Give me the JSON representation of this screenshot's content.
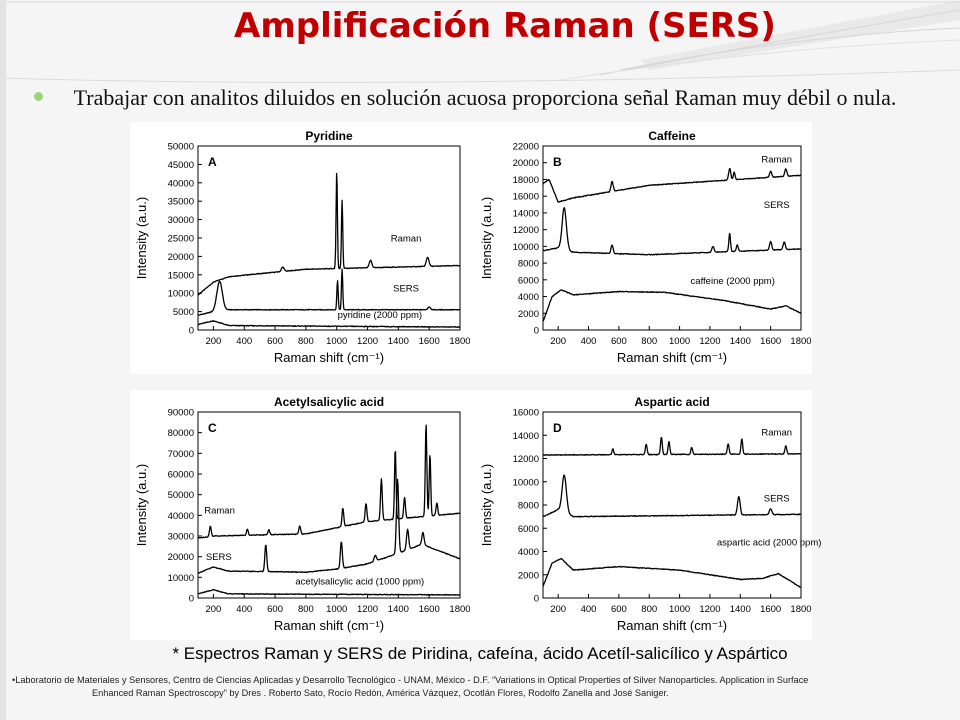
{
  "slide": {
    "title": "Amplificación Raman (SERS)",
    "bullet": "Trabajar con analitos diluidos en solución acuosa proporciona señal Raman muy débil o nula.",
    "caption": "* Espectros Raman y SERS de Piridina, cafeína, ácido Acetíl-salicílico y Aspártico",
    "footnote_line1": "•Laboratorio de Materiales y Sensores, Centro de Ciencias Aplicadas y Desarrollo Tecnológico - UNAM, México - D.F.  “Variations in Optical Properties of Silver Nanoparticles. Application in Surface",
    "footnote_line2": "Enhanced Raman Spectroscopy” by Dres . Roberto Sato, Rocío Redón, América Vázquez, Ocotlán Flores, Rodolfo Zanella and José Saniger.",
    "colors": {
      "title": "#c00000",
      "bullet_dot": "#9bd47c",
      "line": "#000000"
    }
  },
  "chart_data": [
    {
      "type": "line",
      "panel_letter": "A",
      "title": "Pyridine",
      "xlabel": "Raman shift (cm⁻¹)",
      "ylabel": "Intensity (a.u.)",
      "xlim": [
        100,
        1800
      ],
      "ylim": [
        0,
        50000
      ],
      "xticks": [
        200,
        400,
        600,
        800,
        1000,
        1200,
        1400,
        1600,
        1800
      ],
      "yticks": [
        0,
        5000,
        10000,
        15000,
        20000,
        25000,
        30000,
        35000,
        40000,
        45000,
        50000
      ],
      "series": [
        {
          "name": "Raman",
          "baseline": [
            [
              100,
              9500
            ],
            [
              200,
              13000
            ],
            [
              300,
              14500
            ],
            [
              800,
              16500
            ],
            [
              1800,
              17500
            ]
          ],
          "peaks": [
            [
              650,
              1200,
              12
            ],
            [
              1000,
              26500,
              6
            ],
            [
              1035,
              18500,
              6
            ],
            [
              1220,
              2000,
              12
            ],
            [
              1590,
              2500,
              12
            ]
          ],
          "label_at": [
            1450,
            24000
          ]
        },
        {
          "name": "SERS",
          "baseline": [
            [
              100,
              4000
            ],
            [
              200,
              5000
            ],
            [
              300,
              5500
            ],
            [
              1800,
              5500
            ]
          ],
          "peaks": [
            [
              240,
              8000,
              25
            ],
            [
              1005,
              8000,
              6
            ],
            [
              1035,
              11000,
              6
            ],
            [
              1600,
              800,
              12
            ]
          ],
          "label_at": [
            1450,
            10500
          ]
        },
        {
          "name": "pyridine (2000 ppm)",
          "baseline": [
            [
              100,
              1500
            ],
            [
              200,
              2500
            ],
            [
              300,
              1200
            ],
            [
              1800,
              800
            ]
          ],
          "peaks": [],
          "label_at": [
            1280,
            3200
          ]
        }
      ]
    },
    {
      "type": "line",
      "panel_letter": "B",
      "title": "Caffeine",
      "xlabel": "Raman shift (cm⁻¹)",
      "ylabel": "Intensity (a.u.)",
      "xlim": [
        100,
        1800
      ],
      "ylim": [
        0,
        22000
      ],
      "xticks": [
        200,
        400,
        600,
        800,
        1000,
        1200,
        1400,
        1600,
        1800
      ],
      "yticks": [
        0,
        2000,
        4000,
        6000,
        8000,
        10000,
        12000,
        14000,
        16000,
        18000,
        20000,
        22000
      ],
      "series": [
        {
          "name": "Raman",
          "baseline": [
            [
              100,
              17500
            ],
            [
              140,
              18000
            ],
            [
              200,
              15300
            ],
            [
              300,
              15800
            ],
            [
              800,
              17300
            ],
            [
              1800,
              18500
            ]
          ],
          "peaks": [
            [
              555,
              1200,
              10
            ],
            [
              1330,
              1400,
              10
            ],
            [
              1360,
              900,
              8
            ],
            [
              1600,
              700,
              10
            ],
            [
              1700,
              900,
              10
            ]
          ],
          "label_at": [
            1640,
            20000
          ]
        },
        {
          "name": "SERS",
          "baseline": [
            [
              100,
              9500
            ],
            [
              200,
              9800
            ],
            [
              300,
              9300
            ],
            [
              800,
              9000
            ],
            [
              1800,
              9700
            ]
          ],
          "peaks": [
            [
              240,
              5000,
              20
            ],
            [
              555,
              1000,
              10
            ],
            [
              1220,
              700,
              10
            ],
            [
              1330,
              2200,
              8
            ],
            [
              1380,
              800,
              8
            ],
            [
              1600,
              1000,
              10
            ],
            [
              1690,
              900,
              10
            ]
          ],
          "label_at": [
            1640,
            14600
          ]
        },
        {
          "name": "caffeine (2000 ppm)",
          "baseline": [
            [
              100,
              1000
            ],
            [
              160,
              4000
            ],
            [
              220,
              4800
            ],
            [
              300,
              4200
            ],
            [
              600,
              4600
            ],
            [
              900,
              4500
            ],
            [
              1300,
              3500
            ],
            [
              1600,
              2500
            ],
            [
              1700,
              2900
            ],
            [
              1800,
              2000
            ]
          ],
          "peaks": [],
          "label_at": [
            1350,
            5500
          ]
        }
      ]
    },
    {
      "type": "line",
      "panel_letter": "C",
      "title": "Acetylsalicylic acid",
      "xlabel": "Raman shift (cm⁻¹)",
      "ylabel": "Intensity (a.u.)",
      "xlim": [
        100,
        1800
      ],
      "ylim": [
        0,
        90000
      ],
      "xticks": [
        200,
        400,
        600,
        800,
        1000,
        1200,
        1400,
        1600,
        1800
      ],
      "yticks": [
        0,
        10000,
        20000,
        30000,
        40000,
        50000,
        60000,
        70000,
        80000,
        90000
      ],
      "series": [
        {
          "name": "Raman",
          "baseline": [
            [
              100,
              29000
            ],
            [
              200,
              30000
            ],
            [
              800,
              31000
            ],
            [
              1000,
              34000
            ],
            [
              1200,
              37000
            ],
            [
              1500,
              39000
            ],
            [
              1800,
              41000
            ]
          ],
          "peaks": [
            [
              180,
              5000,
              8
            ],
            [
              420,
              3000,
              8
            ],
            [
              560,
              2500,
              8
            ],
            [
              760,
              4000,
              8
            ],
            [
              1040,
              9000,
              8
            ],
            [
              1190,
              9000,
              8
            ],
            [
              1290,
              20000,
              8
            ],
            [
              1380,
              34000,
              7
            ],
            [
              1440,
              10000,
              8
            ],
            [
              1580,
              45000,
              7
            ],
            [
              1605,
              30000,
              7
            ],
            [
              1650,
              6000,
              8
            ]
          ],
          "label_at": [
            240,
            41000
          ]
        },
        {
          "name": "SERS",
          "baseline": [
            [
              100,
              12000
            ],
            [
              200,
              15000
            ],
            [
              300,
              13000
            ],
            [
              800,
              12500
            ],
            [
              1000,
              14000
            ],
            [
              1200,
              16500
            ],
            [
              1450,
              23000
            ],
            [
              1550,
              26000
            ],
            [
              1800,
              19000
            ]
          ],
          "peaks": [
            [
              540,
              13000,
              9
            ],
            [
              1030,
              13000,
              9
            ],
            [
              1250,
              3000,
              10
            ],
            [
              1395,
              36000,
              10
            ],
            [
              1460,
              10000,
              10
            ],
            [
              1560,
              6000,
              10
            ]
          ],
          "label_at": [
            235,
            18500
          ]
        },
        {
          "name": "acetylsalicylic acid (1000 ppm)",
          "baseline": [
            [
              100,
              2000
            ],
            [
              200,
              4000
            ],
            [
              300,
              2000
            ],
            [
              1800,
              1500
            ]
          ],
          "peaks": [],
          "label_at": [
            1150,
            6500
          ]
        }
      ]
    },
    {
      "type": "line",
      "panel_letter": "D",
      "title": "Aspartic acid",
      "xlabel": "Raman shift (cm⁻¹)",
      "ylabel": "Intensity (a.u.)",
      "xlim": [
        100,
        1800
      ],
      "ylim": [
        0,
        16000
      ],
      "xticks": [
        200,
        400,
        600,
        800,
        1000,
        1200,
        1400,
        1600,
        1800
      ],
      "yticks": [
        0,
        2000,
        4000,
        6000,
        8000,
        10000,
        12000,
        14000,
        16000
      ],
      "series": [
        {
          "name": "Raman",
          "baseline": [
            [
              100,
              12300
            ],
            [
              1800,
              12400
            ]
          ],
          "peaks": [
            [
              560,
              500,
              8
            ],
            [
              780,
              900,
              8
            ],
            [
              880,
              1500,
              8
            ],
            [
              930,
              1100,
              8
            ],
            [
              1080,
              600,
              8
            ],
            [
              1320,
              900,
              8
            ],
            [
              1410,
              1300,
              8
            ],
            [
              1700,
              700,
              8
            ]
          ],
          "label_at": [
            1640,
            14000
          ]
        },
        {
          "name": "SERS",
          "baseline": [
            [
              100,
              7000
            ],
            [
              200,
              7600
            ],
            [
              300,
              7000
            ],
            [
              1800,
              7200
            ]
          ],
          "peaks": [
            [
              240,
              3200,
              20
            ],
            [
              1390,
              1600,
              12
            ],
            [
              1600,
              500,
              12
            ]
          ],
          "label_at": [
            1640,
            8300
          ]
        },
        {
          "name": "aspartic acid (2000 ppm)",
          "baseline": [
            [
              100,
              1000
            ],
            [
              160,
              3000
            ],
            [
              220,
              3400
            ],
            [
              300,
              2400
            ],
            [
              600,
              2700
            ],
            [
              1000,
              2400
            ],
            [
              1400,
              1600
            ],
            [
              1550,
              1700
            ],
            [
              1650,
              2100
            ],
            [
              1800,
              900
            ]
          ],
          "peaks": [],
          "label_at": [
            1590,
            4500
          ]
        }
      ]
    }
  ]
}
